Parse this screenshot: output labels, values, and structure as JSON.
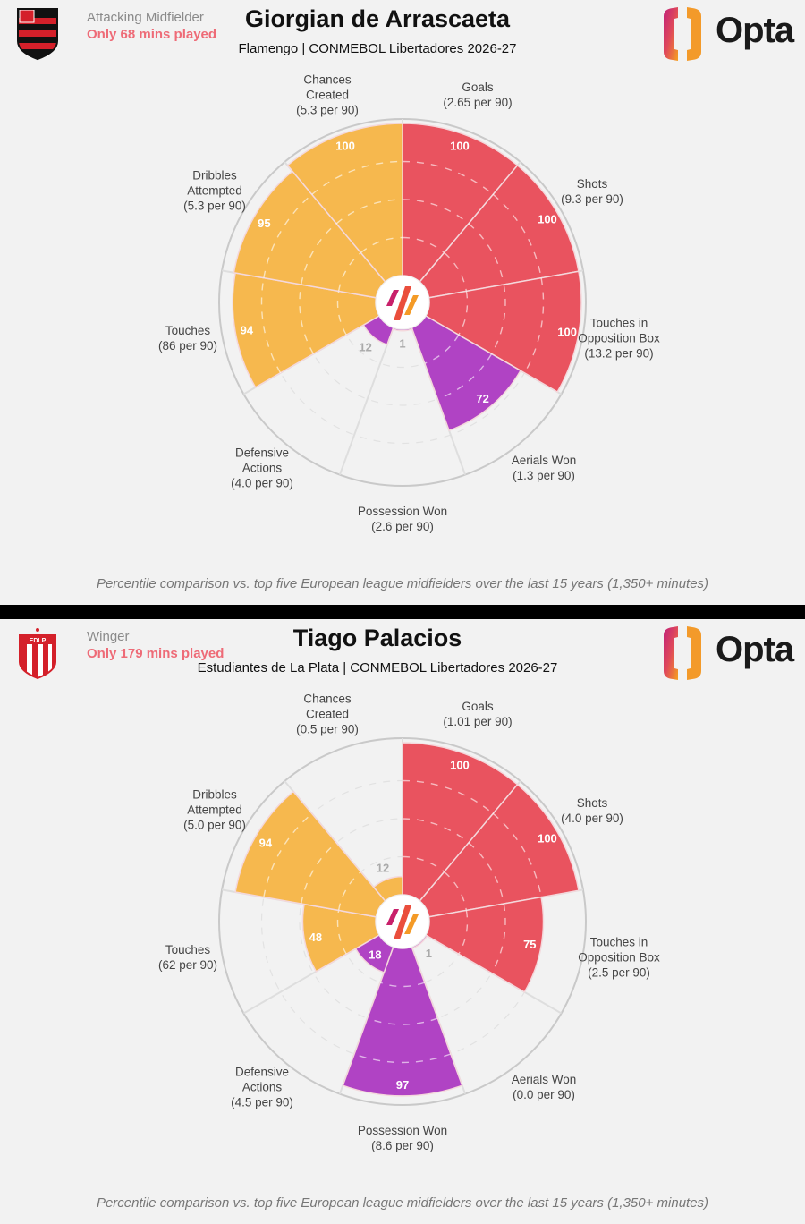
{
  "colors": {
    "attacking": "#e9535f",
    "possession": "#f6b84e",
    "defending": "#b043c4",
    "warning": "#ee6b77",
    "background": "#f2f2f2"
  },
  "caption": "Percentile comparison vs. top five European league midfielders over the last 15 years (1,350+ minutes)",
  "brand": {
    "name": "Opta"
  },
  "players": [
    {
      "position": "Attacking Midfielder",
      "warning": "Only 68 mins played",
      "name": "Giorgian de Arrascaeta",
      "subtitle": "Flamengo | CONMEBOL Libertadores 2026-27",
      "crest": "flamengo-crest"
    },
    {
      "position": "Winger",
      "warning": "Only 179 mins played",
      "name": "Tiago Palacios",
      "subtitle": "Estudiantes de La Plata | CONMEBOL Libertadores 2026-27",
      "crest": "estudiantes-crest"
    }
  ],
  "chart_data": [
    {
      "type": "pie",
      "subtype": "pizza-percentile",
      "range": [
        0,
        100
      ],
      "categories": [
        {
          "label": "Goals",
          "per90": "(2.65 per 90)",
          "group": "attacking",
          "value": 100
        },
        {
          "label": "Shots",
          "per90": "(9.3 per 90)",
          "group": "attacking",
          "value": 100
        },
        {
          "label": "Touches in Opposition Box",
          "per90": "(13.2 per 90)",
          "group": "attacking",
          "value": 100
        },
        {
          "label": "Aerials Won",
          "per90": "(1.3 per 90)",
          "group": "defending",
          "value": 72
        },
        {
          "label": "Possession Won",
          "per90": "(2.6 per 90)",
          "group": "defending",
          "value": 1
        },
        {
          "label": "Defensive Actions",
          "per90": "(4.0 per 90)",
          "group": "defending",
          "value": 12
        },
        {
          "label": "Touches",
          "per90": "(86 per 90)",
          "group": "possession",
          "value": 94
        },
        {
          "label": "Dribbles Attempted",
          "per90": "(5.3 per 90)",
          "group": "possession",
          "value": 95
        },
        {
          "label": "Chances Created",
          "per90": "(5.3 per 90)",
          "group": "possession",
          "value": 100
        }
      ]
    },
    {
      "type": "pie",
      "subtype": "pizza-percentile",
      "range": [
        0,
        100
      ],
      "categories": [
        {
          "label": "Goals",
          "per90": "(1.01 per 90)",
          "group": "attacking",
          "value": 100
        },
        {
          "label": "Shots",
          "per90": "(4.0 per 90)",
          "group": "attacking",
          "value": 100
        },
        {
          "label": "Touches in Opposition Box",
          "per90": "(2.5 per 90)",
          "group": "attacking",
          "value": 75
        },
        {
          "label": "Aerials Won",
          "per90": "(0.0 per 90)",
          "group": "defending",
          "value": 1
        },
        {
          "label": "Possession Won",
          "per90": "(8.6 per 90)",
          "group": "defending",
          "value": 97
        },
        {
          "label": "Defensive Actions",
          "per90": "(4.5 per 90)",
          "group": "defending",
          "value": 18
        },
        {
          "label": "Touches",
          "per90": "(62 per 90)",
          "group": "possession",
          "value": 48
        },
        {
          "label": "Dribbles Attempted",
          "per90": "(5.0 per 90)",
          "group": "possession",
          "value": 94
        },
        {
          "label": "Chances Created",
          "per90": "(0.5 per 90)",
          "group": "possession",
          "value": 12
        }
      ]
    }
  ]
}
